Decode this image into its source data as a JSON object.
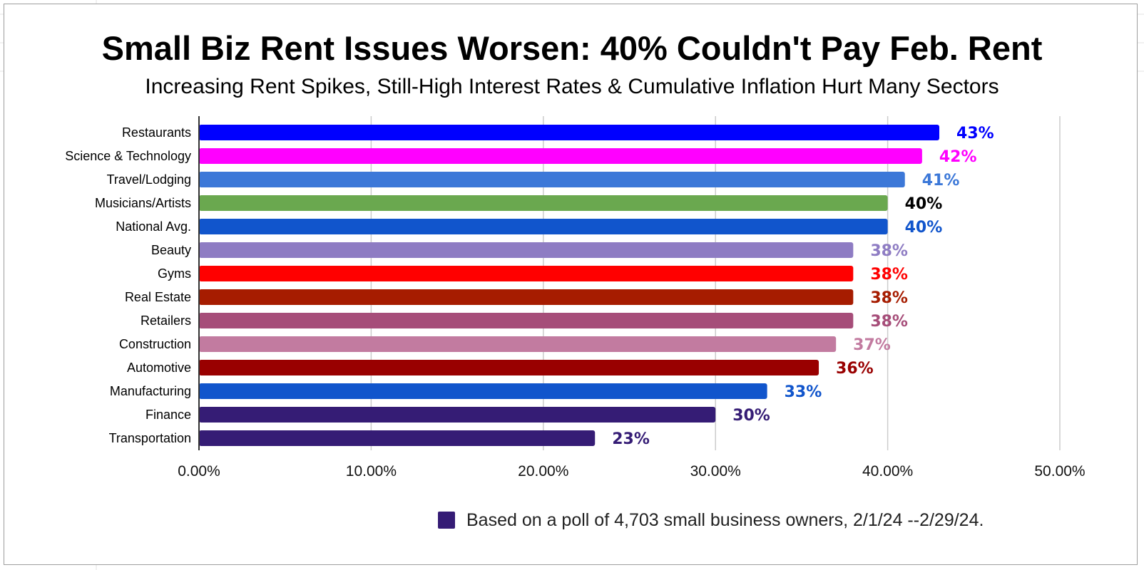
{
  "chart_data": {
    "type": "bar",
    "orientation": "horizontal",
    "title": "Small Biz Rent Issues Worsen: 40% Couldn't Pay Feb. Rent",
    "subtitle": "Increasing Rent Spikes, Still-High Interest Rates & Cumulative Inflation Hurt Many Sectors",
    "categories": [
      "Restaurants",
      "Science & Technology",
      "Travel/Lodging",
      "Musicians/Artists",
      "National Avg.",
      "Beauty",
      "Gyms",
      "Real Estate",
      "Retailers",
      "Construction",
      "Automotive",
      "Manufacturing",
      "Finance",
      "Transportation"
    ],
    "values": [
      43,
      42,
      41,
      40,
      40,
      38,
      38,
      38,
      38,
      37,
      36,
      33,
      30,
      23
    ],
    "data_labels": [
      "43%",
      "42%",
      "41%",
      "40%",
      "40%",
      "38%",
      "38%",
      "38%",
      "38%",
      "37%",
      "36%",
      "33%",
      "30%",
      "23%"
    ],
    "bar_colors": [
      "#0000ff",
      "#ff00ff",
      "#3c78d8",
      "#6aa84f",
      "#1155cc",
      "#8e7cc3",
      "#ff0000",
      "#a61c00",
      "#a64d79",
      "#c27ba0",
      "#990000",
      "#1155cc",
      "#351c75",
      "#351c75"
    ],
    "label_colors": [
      "#0000ff",
      "#ff00ff",
      "#3c78d8",
      "#000000",
      "#1155cc",
      "#8e7cc3",
      "#ff0000",
      "#a61c00",
      "#a64d79",
      "#c27ba0",
      "#990000",
      "#1155cc",
      "#351c75",
      "#351c75"
    ],
    "xlim": [
      0,
      50
    ],
    "x_ticks": [
      0,
      10,
      20,
      30,
      40,
      50
    ],
    "x_tick_labels": [
      "0.00%",
      "10.00%",
      "20.00%",
      "30.00%",
      "40.00%",
      "50.00%"
    ],
    "grid": true,
    "legend": {
      "placement": "bottom",
      "entries": [
        {
          "label": "Based on a poll of 4,703 small business owners, 2/1/24 --2/29/24.",
          "color": "#351c75"
        }
      ]
    }
  }
}
